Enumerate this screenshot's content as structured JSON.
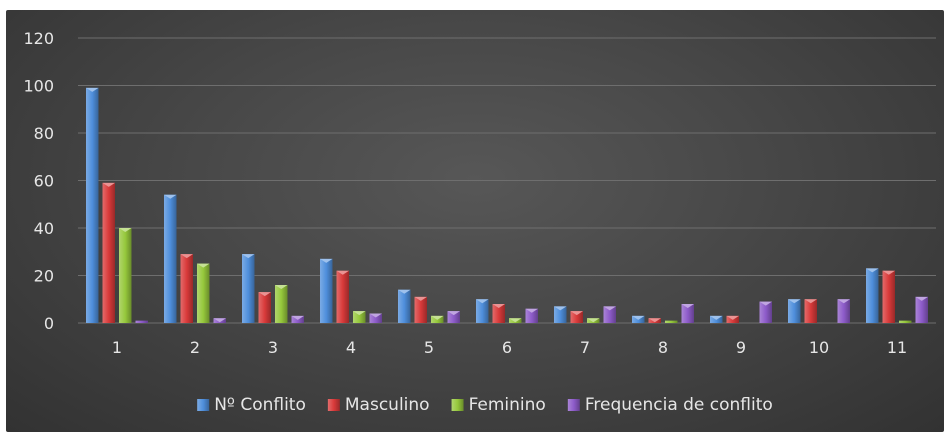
{
  "chart_data": {
    "type": "bar",
    "categories": [
      "1",
      "2",
      "3",
      "4",
      "5",
      "6",
      "7",
      "8",
      "9",
      "10",
      "11"
    ],
    "series": [
      {
        "name": "Nº Conflito",
        "color": "#4f8fdc",
        "values": [
          99,
          54,
          29,
          27,
          14,
          10,
          7,
          3,
          3,
          10,
          23
        ]
      },
      {
        "name": "Masculino",
        "color": "#d93a3a",
        "values": [
          59,
          29,
          13,
          22,
          11,
          8,
          5,
          2,
          3,
          10,
          22
        ]
      },
      {
        "name": "Feminino",
        "color": "#96c83c",
        "values": [
          40,
          25,
          16,
          5,
          3,
          2,
          2,
          1,
          0,
          0,
          1
        ]
      },
      {
        "name": "Frequencia de conflito",
        "color": "#8d5bc9",
        "values": [
          1,
          2,
          3,
          4,
          5,
          6,
          7,
          8,
          9,
          10,
          11
        ]
      }
    ],
    "ylim": [
      0,
      120
    ],
    "yticks": [
      0,
      20,
      40,
      60,
      80,
      100,
      120
    ],
    "grid": true,
    "legend_position": "bottom",
    "title": "",
    "xlabel": "",
    "ylabel": ""
  }
}
